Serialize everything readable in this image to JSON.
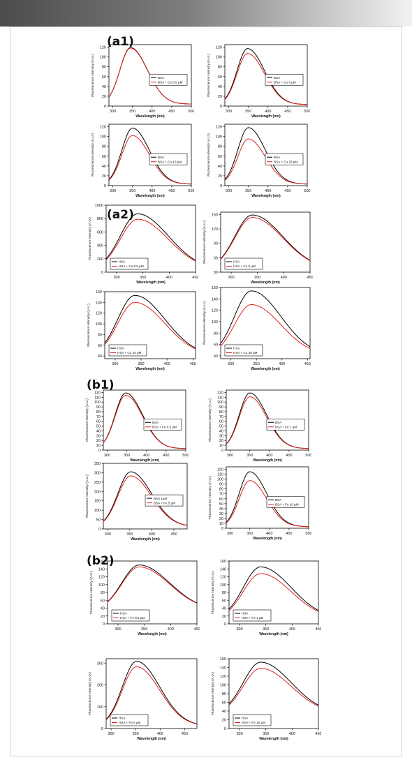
{
  "chart_data": [
    {
      "type": "line",
      "group": "a1",
      "xlim": [
        290,
        500
      ],
      "xticks": [
        300,
        350,
        400,
        450,
        500
      ],
      "ylim": [
        0,
        125
      ],
      "yticks": [
        0,
        20,
        40,
        60,
        80,
        100,
        120
      ],
      "xlabel": "Wavelength (nm)",
      "ylabel": "Fluorescence intensity (A.U.)",
      "legend_position": "center-right",
      "series": [
        {
          "name": "BSA",
          "color": "#000000",
          "peak_x": 345,
          "peak_y": 119,
          "wl": 27,
          "wr": 43,
          "base": 4
        },
        {
          "name": "BSA + Cu 0.5 µM",
          "color": "#e0201c",
          "peak_x": 345,
          "peak_y": 118,
          "wl": 27,
          "wr": 43,
          "base": 4
        }
      ]
    },
    {
      "type": "line",
      "group": "a1",
      "xlim": [
        290,
        500
      ],
      "xticks": [
        300,
        350,
        400,
        450,
        500
      ],
      "ylim": [
        0,
        125
      ],
      "yticks": [
        0,
        20,
        40,
        60,
        80,
        100,
        120
      ],
      "xlabel": "Wavelength (nm)",
      "ylabel": "Fluorescence intensity (A.U.)",
      "legend_position": "center-right",
      "series": [
        {
          "name": "BSA",
          "color": "#000000",
          "peak_x": 348,
          "peak_y": 117,
          "wl": 27,
          "wr": 43,
          "base": 3
        },
        {
          "name": "BSA + Cu 5 µM",
          "color": "#e0201c",
          "peak_x": 348,
          "peak_y": 107,
          "wl": 27,
          "wr": 43,
          "base": 3
        }
      ]
    },
    {
      "type": "line",
      "group": "a1",
      "xlim": [
        290,
        500
      ],
      "xticks": [
        300,
        350,
        400,
        450,
        500
      ],
      "ylim": [
        0,
        125
      ],
      "yticks": [
        0,
        20,
        40,
        60,
        80,
        100,
        120
      ],
      "xlabel": "Wavelength (nm)",
      "ylabel": "Fluorescence intensity (A.U.)",
      "legend_position": "center-right",
      "series": [
        {
          "name": "BSA",
          "color": "#000000",
          "peak_x": 350,
          "peak_y": 117,
          "wl": 27,
          "wr": 43,
          "base": 3
        },
        {
          "name": "BSA + Cu 10 µM",
          "color": "#e0201c",
          "peak_x": 350,
          "peak_y": 102,
          "wl": 27,
          "wr": 43,
          "base": 3
        }
      ]
    },
    {
      "type": "line",
      "group": "a1",
      "xlim": [
        290,
        500
      ],
      "xticks": [
        300,
        350,
        400,
        450,
        500
      ],
      "ylim": [
        0,
        125
      ],
      "yticks": [
        0,
        20,
        40,
        60,
        80,
        100,
        120
      ],
      "xlabel": "Wavelength (nm)",
      "ylabel": "Fluorescence intensity (A.U.)",
      "legend_position": "center-right",
      "series": [
        {
          "name": "BSA",
          "color": "#000000",
          "peak_x": 350,
          "peak_y": 118,
          "wl": 27,
          "wr": 43,
          "base": 3
        },
        {
          "name": "BSA + Cu 30 µM",
          "color": "#e0201c",
          "peak_x": 350,
          "peak_y": 95,
          "wl": 27,
          "wr": 43,
          "base": 3
        }
      ]
    },
    {
      "type": "line",
      "group": "a2",
      "xlim": [
        280,
        450
      ],
      "xticks": [
        300,
        350,
        400,
        450
      ],
      "ylim": [
        0,
        1000
      ],
      "yticks": [
        0,
        200,
        400,
        600,
        800,
        1000
      ],
      "xlabel": "Wavelength (nm)",
      "ylabel": "Fluorescence intensity (A.U.)",
      "legend_position": "lower-left",
      "series": [
        {
          "name": "HSA",
          "color": "#000000",
          "peak_x": 340,
          "peak_y": 870,
          "wl": 33,
          "wr": 58,
          "base": 40
        },
        {
          "name": "HSA + Cu 0.5 µM",
          "color": "#e0201c",
          "peak_x": 340,
          "peak_y": 790,
          "wl": 33,
          "wr": 58,
          "base": 40
        }
      ]
    },
    {
      "type": "line",
      "group": "a2",
      "xlim": [
        280,
        450
      ],
      "xticks": [
        300,
        350,
        400,
        450
      ],
      "ylim": [
        30,
        155
      ],
      "yticks": [
        30,
        60,
        90,
        120,
        150
      ],
      "xlabel": "Wavelength (nm)",
      "ylabel": "Fluorescence intensity (A.U.)",
      "legend_position": "lower-left",
      "series": [
        {
          "name": "HSA",
          "color": "#000000",
          "peak_x": 340,
          "peak_y": 149,
          "wl": 33,
          "wr": 58,
          "base": 36
        },
        {
          "name": "HSA + Cu 5 µM",
          "color": "#e0201c",
          "peak_x": 340,
          "peak_y": 144,
          "wl": 33,
          "wr": 58,
          "base": 36
        }
      ]
    },
    {
      "type": "line",
      "group": "a2",
      "xlim": [
        280,
        455
      ],
      "xticks": [
        300,
        350,
        400,
        450
      ],
      "ylim": [
        35,
        160
      ],
      "yticks": [
        40,
        60,
        80,
        100,
        120,
        140,
        160
      ],
      "xlabel": "Wavelength (nm)",
      "ylabel": "Fluorescence intensity (A.U.)",
      "legend_position": "lower-left",
      "series": [
        {
          "name": "HSA",
          "color": "#000000",
          "peak_x": 338,
          "peak_y": 153,
          "wl": 33,
          "wr": 58,
          "base": 40
        },
        {
          "name": "HSA + Cu 10 µM",
          "color": "#e0201c",
          "peak_x": 338,
          "peak_y": 140,
          "wl": 33,
          "wr": 58,
          "base": 40
        }
      ]
    },
    {
      "type": "line",
      "group": "a2",
      "xlim": [
        280,
        455
      ],
      "xticks": [
        300,
        350,
        400,
        450
      ],
      "ylim": [
        35,
        160
      ],
      "yticks": [
        40,
        60,
        80,
        100,
        120,
        140,
        160
      ],
      "xlabel": "Wavelength (nm)",
      "ylabel": "Fluorescence intensity (A.U.)",
      "legend_position": "lower-left",
      "series": [
        {
          "name": "HSA",
          "color": "#000000",
          "peak_x": 340,
          "peak_y": 154,
          "wl": 33,
          "wr": 58,
          "base": 40
        },
        {
          "name": "HSA + Cu 30 µM",
          "color": "#e0201c",
          "peak_x": 340,
          "peak_y": 130,
          "wl": 33,
          "wr": 58,
          "base": 40
        }
      ]
    },
    {
      "type": "line",
      "group": "b1",
      "xlim": [
        290,
        500
      ],
      "xticks": [
        300,
        350,
        400,
        450,
        500
      ],
      "ylim": [
        0,
        125
      ],
      "yticks": [
        0,
        10,
        20,
        30,
        40,
        50,
        60,
        70,
        80,
        90,
        100,
        110,
        120
      ],
      "xlabel": "Wavelength (nm)",
      "ylabel": "Fluorescence intensity (A.U.)",
      "legend_position": "center-right",
      "series": [
        {
          "name": "BSA",
          "color": "#000000",
          "peak_x": 347,
          "peak_y": 119,
          "wl": 27,
          "wr": 43,
          "base": 3
        },
        {
          "name": "BSA + Fe 0.5 µM",
          "color": "#e0201c",
          "peak_x": 347,
          "peak_y": 114,
          "wl": 27,
          "wr": 43,
          "base": 3
        }
      ]
    },
    {
      "type": "line",
      "group": "b1",
      "xlim": [
        290,
        500
      ],
      "xticks": [
        300,
        350,
        400,
        450,
        500
      ],
      "ylim": [
        0,
        125
      ],
      "yticks": [
        0,
        10,
        20,
        30,
        40,
        50,
        60,
        70,
        80,
        90,
        100,
        110,
        120
      ],
      "xlabel": "Wavelength (nm)",
      "ylabel": "Fluorescence intensity (A.U.)",
      "legend_position": "center-right",
      "series": [
        {
          "name": "BSA",
          "color": "#000000",
          "peak_x": 350,
          "peak_y": 119,
          "wl": 27,
          "wr": 43,
          "base": 3
        },
        {
          "name": "BSA + Fe 1 µM",
          "color": "#e0201c",
          "peak_x": 350,
          "peak_y": 111,
          "wl": 27,
          "wr": 43,
          "base": 3
        }
      ]
    },
    {
      "type": "line",
      "group": "b1",
      "xlim": [
        290,
        480
      ],
      "xticks": [
        300,
        350,
        400,
        450
      ],
      "ylim": [
        0,
        350
      ],
      "yticks": [
        0,
        50,
        100,
        150,
        200,
        250,
        300,
        350
      ],
      "xlabel": "Wavelength (nm)",
      "ylabel": "Fluorescence intensity (A.U.)",
      "legend_position": "center-right",
      "series": [
        {
          "name": "BSA 1µM",
          "color": "#000000",
          "peak_x": 352,
          "peak_y": 305,
          "wl": 29,
          "wr": 47,
          "base": 12
        },
        {
          "name": "BSA + Fe 5 µM",
          "color": "#e0201c",
          "peak_x": 352,
          "peak_y": 283,
          "wl": 29,
          "wr": 47,
          "base": 12
        }
      ]
    },
    {
      "type": "line",
      "group": "b1",
      "xlim": [
        290,
        500
      ],
      "xticks": [
        300,
        350,
        400,
        450,
        500
      ],
      "ylim": [
        0,
        125
      ],
      "yticks": [
        0,
        10,
        20,
        30,
        40,
        50,
        60,
        70,
        80,
        90,
        100,
        110,
        120
      ],
      "xlabel": "Wavelength (nm)",
      "ylabel": "Fluorescence intensity (A.U.)",
      "legend_position": "center-right",
      "series": [
        {
          "name": "BSA",
          "color": "#000000",
          "peak_x": 350,
          "peak_y": 115,
          "wl": 27,
          "wr": 43,
          "base": 3
        },
        {
          "name": "BSA + Fe 10 µM",
          "color": "#e0201c",
          "peak_x": 350,
          "peak_y": 97,
          "wl": 27,
          "wr": 43,
          "base": 3
        }
      ]
    },
    {
      "type": "line",
      "group": "b2",
      "xlim": [
        280,
        450
      ],
      "xticks": [
        300,
        350,
        400,
        450
      ],
      "ylim": [
        0,
        160
      ],
      "yticks": [
        0,
        20,
        40,
        60,
        80,
        100,
        120,
        140,
        160
      ],
      "xlabel": "Wavelength (nm)",
      "ylabel": "Fluorescence intensity (A.U.)",
      "legend_position": "lower-left",
      "series": [
        {
          "name": "HSA",
          "color": "#000000",
          "peak_x": 340,
          "peak_y": 150,
          "wl": 33,
          "wr": 58,
          "base": 34
        },
        {
          "name": "HSA + Fe 0.5 µM",
          "color": "#e0201c",
          "peak_x": 340,
          "peak_y": 145,
          "wl": 33,
          "wr": 58,
          "base": 34
        }
      ]
    },
    {
      "type": "line",
      "group": "b2",
      "xlim": [
        280,
        450
      ],
      "xticks": [
        300,
        350,
        400,
        450
      ],
      "ylim": [
        0,
        160
      ],
      "yticks": [
        0,
        20,
        40,
        60,
        80,
        100,
        120,
        140,
        160
      ],
      "xlabel": "Wavelength (nm)",
      "ylabel": "Fluorescence intensity (A.U.)",
      "legend_position": "lower-left",
      "series": [
        {
          "name": "HSA",
          "color": "#000000",
          "peak_x": 340,
          "peak_y": 145,
          "wl": 33,
          "wr": 58,
          "base": 12
        },
        {
          "name": "HSA + Fe 1 µM",
          "color": "#e0201c",
          "peak_x": 340,
          "peak_y": 128,
          "wl": 33,
          "wr": 58,
          "base": 12
        }
      ]
    },
    {
      "type": "line",
      "group": "b2",
      "xlim": [
        290,
        475
      ],
      "xticks": [
        300,
        350,
        400,
        450
      ],
      "ylim": [
        0,
        320
      ],
      "yticks": [
        0,
        100,
        200,
        300
      ],
      "xlabel": "Wavelength (nm)",
      "ylabel": "Fluorescence intensity (A.U.)",
      "legend_position": "lower-left",
      "series": [
        {
          "name": "HSA",
          "color": "#000000",
          "peak_x": 352,
          "peak_y": 308,
          "wl": 29,
          "wr": 47,
          "base": 12
        },
        {
          "name": "HSA + Fe 5 µM",
          "color": "#e0201c",
          "peak_x": 352,
          "peak_y": 283,
          "wl": 29,
          "wr": 47,
          "base": 12
        }
      ]
    },
    {
      "type": "line",
      "group": "b2",
      "xlim": [
        280,
        450
      ],
      "xticks": [
        300,
        350,
        400,
        450
      ],
      "ylim": [
        0,
        160
      ],
      "yticks": [
        0,
        20,
        40,
        60,
        80,
        100,
        120,
        140,
        160
      ],
      "xlabel": "Wavelength (nm)",
      "ylabel": "Fluorescence intensity (A.U.)",
      "legend_position": "lower-left",
      "series": [
        {
          "name": "HSA",
          "color": "#000000",
          "peak_x": 340,
          "peak_y": 152,
          "wl": 33,
          "wr": 58,
          "base": 34
        },
        {
          "name": "HSA + Fe 10 µM",
          "color": "#e0201c",
          "peak_x": 340,
          "peak_y": 138,
          "wl": 33,
          "wr": 58,
          "base": 34
        }
      ]
    }
  ],
  "panel_labels": {
    "a1": "(a1)",
    "a2": "(a2)",
    "b1": "(b1)",
    "b2": "(b2)"
  }
}
